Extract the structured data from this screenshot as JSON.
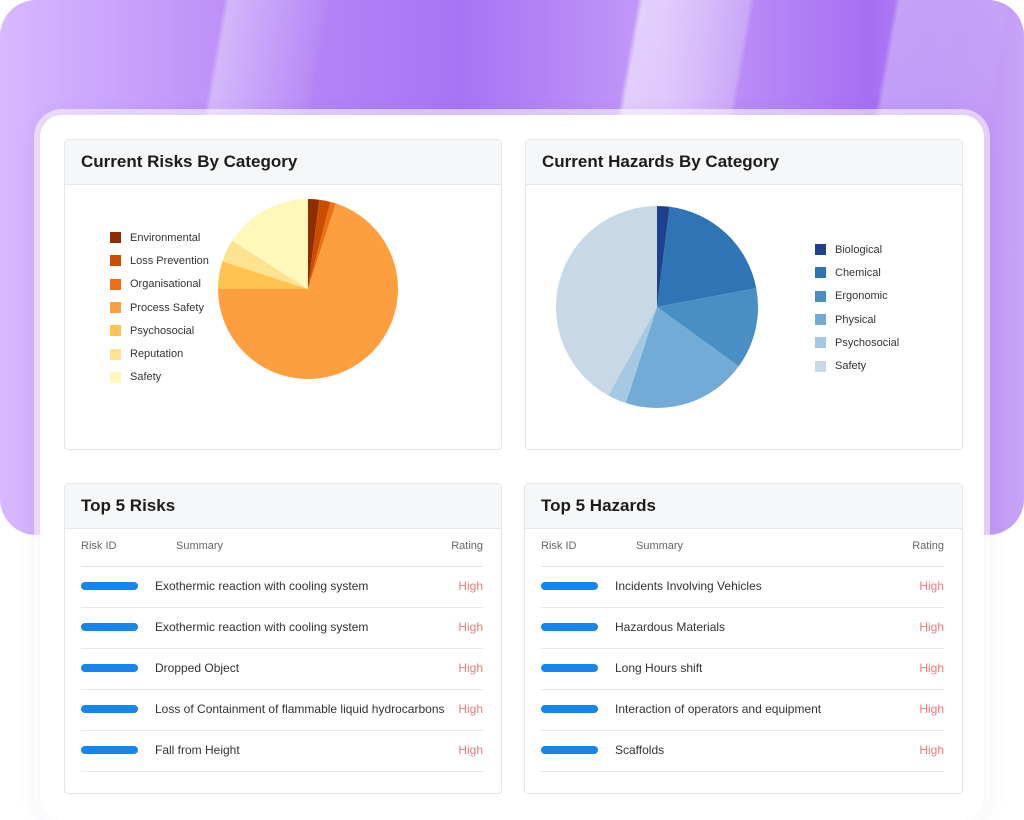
{
  "panels": {
    "risks_chart": {
      "title": "Current Risks By Category",
      "legend": [
        {
          "label": "Environmental",
          "color": "#8c2d04"
        },
        {
          "label": "Loss Prevention",
          "color": "#cc4c02"
        },
        {
          "label": "Organisational",
          "color": "#ec7014"
        },
        {
          "label": "Process Safety",
          "color": "#fe9f3f"
        },
        {
          "label": "Psychosocial",
          "color": "#fec44f"
        },
        {
          "label": "Reputation",
          "color": "#fee391"
        },
        {
          "label": "Safety",
          "color": "#fff7bc"
        }
      ]
    },
    "hazards_chart": {
      "title": "Current Hazards By Category",
      "legend": [
        {
          "label": "Biological",
          "color": "#1f3f8f"
        },
        {
          "label": "Chemical",
          "color": "#2f74b5"
        },
        {
          "label": "Ergonomic",
          "color": "#4a8fc4"
        },
        {
          "label": "Physical",
          "color": "#72acd6"
        },
        {
          "label": "Psychosocial",
          "color": "#a6c8e2"
        },
        {
          "label": "Safety",
          "color": "#c9d8e6"
        }
      ]
    },
    "top_risks": {
      "title": "Top 5 Risks",
      "columns": {
        "id": "Risk ID",
        "summary": "Summary",
        "rating": "Rating"
      },
      "rows": [
        {
          "summary": "Exothermic reaction with cooling system",
          "rating": "High"
        },
        {
          "summary": "Exothermic reaction with cooling system",
          "rating": "High"
        },
        {
          "summary": "Dropped Object",
          "rating": "High"
        },
        {
          "summary": "Loss of Containment of flammable liquid hydrocarbons",
          "rating": "High"
        },
        {
          "summary": "Fall from Height",
          "rating": "High"
        }
      ]
    },
    "top_hazards": {
      "title": "Top 5 Hazards",
      "columns": {
        "id": "Risk ID",
        "summary": "Summary",
        "rating": "Rating"
      },
      "rows": [
        {
          "summary": "Incidents Involving Vehicles",
          "rating": "High"
        },
        {
          "summary": "Hazardous Materials",
          "rating": "High"
        },
        {
          "summary": "Long Hours shift",
          "rating": "High"
        },
        {
          "summary": "Interaction of operators and equipment",
          "rating": "High"
        },
        {
          "summary": "Scaffolds",
          "rating": "High"
        }
      ]
    }
  },
  "chart_data": [
    {
      "type": "pie",
      "title": "Current Risks By Category",
      "categories": [
        "Environmental",
        "Loss Prevention",
        "Organisational",
        "Process Safety",
        "Psychosocial",
        "Reputation",
        "Safety"
      ],
      "values": [
        2,
        2,
        1,
        70,
        5,
        4,
        16
      ],
      "colors": [
        "#8c2d04",
        "#cc4c02",
        "#ec7014",
        "#fe9f3f",
        "#fec44f",
        "#fee391",
        "#fff7bc"
      ],
      "legend_position": "left"
    },
    {
      "type": "pie",
      "title": "Current Hazards By Category",
      "categories": [
        "Biological",
        "Chemical",
        "Ergonomic",
        "Physical",
        "Psychosocial",
        "Safety"
      ],
      "values": [
        2,
        20,
        13,
        20,
        3,
        42
      ],
      "colors": [
        "#1f3f8f",
        "#2f74b5",
        "#4a8fc4",
        "#72acd6",
        "#a6c8e2",
        "#c9d8e6"
      ],
      "legend_position": "right"
    }
  ]
}
